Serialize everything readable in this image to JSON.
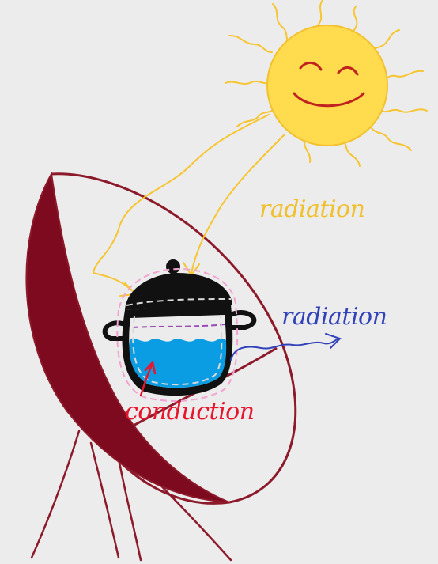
{
  "labels": {
    "sun_radiation": "radiation",
    "pot_radiation": "radiation",
    "conduction": "conduction"
  },
  "colors": {
    "background": "#ececec",
    "sun_fill": "#ffdb4d",
    "sun_stroke": "#f2c12e",
    "sun_rays": "#f6c531",
    "sun_face": "#c1221f",
    "dish_fill": "#7d0a1f",
    "dish_outline": "#8c1a2a",
    "pot_body": "#111111",
    "pot_outline_dashes": "#f2a3cf",
    "pot_inner_dashes": "#d9d9d9",
    "water": "#0b9de3",
    "water_line": "#9b4bb5",
    "radiation_sun_text": "#f0c02e",
    "radiation_pot_text": "#3242b8",
    "conduction_text": "#e8162d"
  },
  "icons": {
    "sun": "smiling-sun-icon",
    "pot": "cooking-pot-icon",
    "dish": "parabolic-solar-dish-icon"
  }
}
